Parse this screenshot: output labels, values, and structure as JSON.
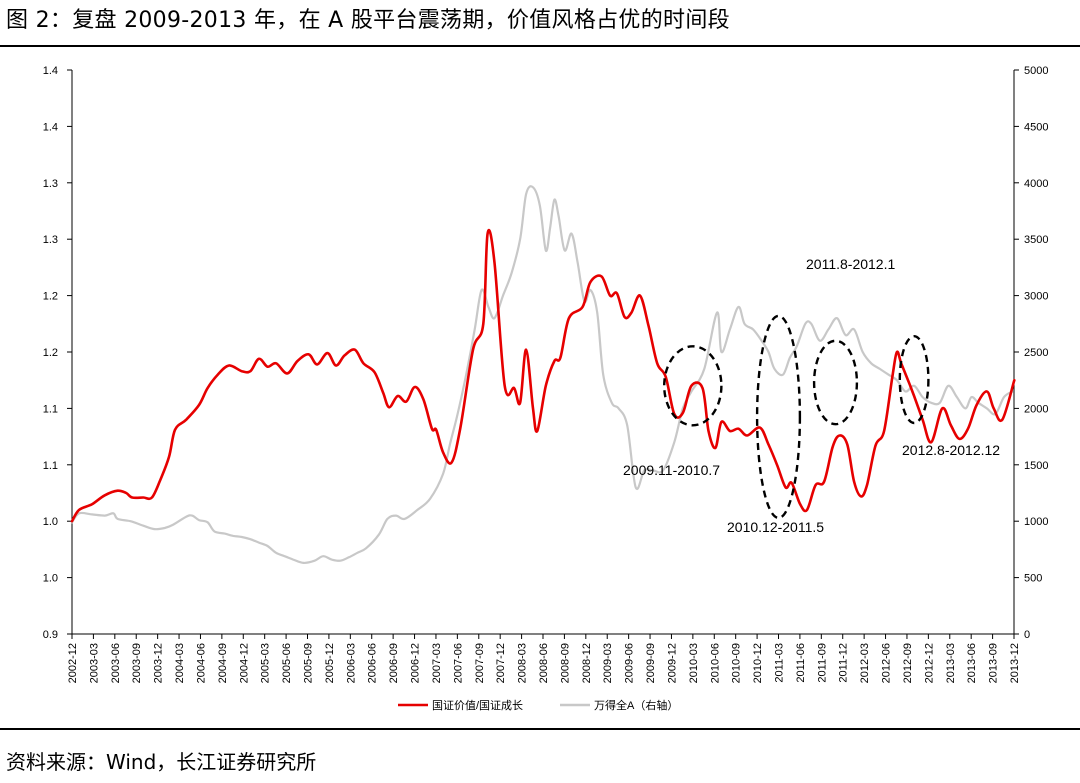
{
  "figure": {
    "title": "图 2：复盘 2009-2013 年，在 A 股平台震荡期，价值风格占优的时间段",
    "source": "资料来源：Wind，长江证券研究所"
  },
  "chart_data": {
    "type": "line",
    "title": "",
    "left_axis": {
      "ticks": [
        "0.9",
        "1.0",
        "1.0",
        "1.1",
        "1.1",
        "1.2",
        "1.2",
        "1.3",
        "1.3",
        "1.4",
        "1.4"
      ],
      "range": [
        0.9,
        1.4
      ]
    },
    "right_axis": {
      "ticks": [
        "0",
        "500",
        "1000",
        "1500",
        "2000",
        "2500",
        "3000",
        "3500",
        "4000",
        "4500",
        "5000"
      ],
      "range": [
        0,
        5000
      ]
    },
    "x_range": [
      2002.917,
      2013.917
    ],
    "x_ticks": [
      "2002-12",
      "2003-03",
      "2003-06",
      "2003-09",
      "2003-12",
      "2004-03",
      "2004-06",
      "2004-09",
      "2004-12",
      "2005-03",
      "2005-06",
      "2005-09",
      "2005-12",
      "2006-03",
      "2006-06",
      "2006-09",
      "2006-12",
      "2007-03",
      "2007-06",
      "2007-09",
      "2007-12",
      "2008-03",
      "2008-06",
      "2008-09",
      "2008-12",
      "2009-03",
      "2009-06",
      "2009-09",
      "2009-12",
      "2010-03",
      "2010-06",
      "2010-09",
      "2010-12",
      "2011-03",
      "2011-06",
      "2011-09",
      "2011-12",
      "2012-03",
      "2012-06",
      "2012-09",
      "2012-12",
      "2013-03",
      "2013-06",
      "2013-09",
      "2013-12"
    ],
    "grid": false,
    "legend_position": "bottom",
    "series": [
      {
        "name": "国证价值/国证成长",
        "axis": "left",
        "color": "#e60000",
        "points": [
          [
            2002.917,
            1.0
          ],
          [
            2003.0,
            1.01
          ],
          [
            2003.15,
            1.015
          ],
          [
            2003.3,
            1.023
          ],
          [
            2003.45,
            1.027
          ],
          [
            2003.55,
            1.025
          ],
          [
            2003.62,
            1.021
          ],
          [
            2003.75,
            1.021
          ],
          [
            2003.85,
            1.021
          ],
          [
            2003.95,
            1.037
          ],
          [
            2004.05,
            1.057
          ],
          [
            2004.12,
            1.081
          ],
          [
            2004.25,
            1.09
          ],
          [
            2004.4,
            1.103
          ],
          [
            2004.5,
            1.118
          ],
          [
            2004.62,
            1.13
          ],
          [
            2004.75,
            1.138
          ],
          [
            2004.9,
            1.133
          ],
          [
            2005.0,
            1.133
          ],
          [
            2005.1,
            1.144
          ],
          [
            2005.2,
            1.137
          ],
          [
            2005.3,
            1.14
          ],
          [
            2005.43,
            1.131
          ],
          [
            2005.55,
            1.142
          ],
          [
            2005.68,
            1.148
          ],
          [
            2005.78,
            1.139
          ],
          [
            2005.9,
            1.149
          ],
          [
            2006.0,
            1.138
          ],
          [
            2006.1,
            1.147
          ],
          [
            2006.22,
            1.152
          ],
          [
            2006.32,
            1.14
          ],
          [
            2006.45,
            1.132
          ],
          [
            2006.55,
            1.114
          ],
          [
            2006.62,
            1.101
          ],
          [
            2006.72,
            1.111
          ],
          [
            2006.82,
            1.106
          ],
          [
            2006.92,
            1.119
          ],
          [
            2007.02,
            1.108
          ],
          [
            2007.12,
            1.082
          ],
          [
            2007.17,
            1.081
          ],
          [
            2007.25,
            1.061
          ],
          [
            2007.35,
            1.052
          ],
          [
            2007.45,
            1.082
          ],
          [
            2007.6,
            1.152
          ],
          [
            2007.72,
            1.175
          ],
          [
            2007.77,
            1.255
          ],
          [
            2007.85,
            1.23
          ],
          [
            2007.97,
            1.12
          ],
          [
            2008.08,
            1.118
          ],
          [
            2008.15,
            1.105
          ],
          [
            2008.22,
            1.152
          ],
          [
            2008.3,
            1.1
          ],
          [
            2008.35,
            1.08
          ],
          [
            2008.45,
            1.12
          ],
          [
            2008.55,
            1.142
          ],
          [
            2008.62,
            1.145
          ],
          [
            2008.72,
            1.18
          ],
          [
            2008.88,
            1.19
          ],
          [
            2008.97,
            1.212
          ],
          [
            2009.1,
            1.217
          ],
          [
            2009.2,
            1.2
          ],
          [
            2009.28,
            1.202
          ],
          [
            2009.37,
            1.181
          ],
          [
            2009.45,
            1.185
          ],
          [
            2009.55,
            1.2
          ],
          [
            2009.65,
            1.173
          ],
          [
            2009.75,
            1.14
          ],
          [
            2009.85,
            1.128
          ],
          [
            2009.95,
            1.095
          ],
          [
            2010.05,
            1.096
          ],
          [
            2010.15,
            1.12
          ],
          [
            2010.28,
            1.118
          ],
          [
            2010.35,
            1.08
          ],
          [
            2010.43,
            1.065
          ],
          [
            2010.5,
            1.088
          ],
          [
            2010.6,
            1.08
          ],
          [
            2010.7,
            1.082
          ],
          [
            2010.8,
            1.076
          ],
          [
            2010.95,
            1.083
          ],
          [
            2011.05,
            1.068
          ],
          [
            2011.15,
            1.05
          ],
          [
            2011.25,
            1.03
          ],
          [
            2011.32,
            1.034
          ],
          [
            2011.42,
            1.015
          ],
          [
            2011.5,
            1.01
          ],
          [
            2011.6,
            1.032
          ],
          [
            2011.7,
            1.035
          ],
          [
            2011.8,
            1.066
          ],
          [
            2011.88,
            1.076
          ],
          [
            2011.97,
            1.068
          ],
          [
            2012.05,
            1.035
          ],
          [
            2012.13,
            1.022
          ],
          [
            2012.2,
            1.032
          ],
          [
            2012.3,
            1.067
          ],
          [
            2012.4,
            1.08
          ],
          [
            2012.5,
            1.13
          ],
          [
            2012.55,
            1.15
          ],
          [
            2012.6,
            1.14
          ],
          [
            2012.7,
            1.121
          ],
          [
            2012.75,
            1.111
          ],
          [
            2012.85,
            1.09
          ],
          [
            2012.95,
            1.07
          ],
          [
            2013.08,
            1.1
          ],
          [
            2013.18,
            1.085
          ],
          [
            2013.28,
            1.073
          ],
          [
            2013.38,
            1.082
          ],
          [
            2013.48,
            1.103
          ],
          [
            2013.6,
            1.115
          ],
          [
            2013.68,
            1.1
          ],
          [
            2013.78,
            1.09
          ],
          [
            2013.92,
            1.125
          ]
        ]
      },
      {
        "name": "万得全A（右轴）",
        "axis": "right",
        "color": "#c8c8c8",
        "points": [
          [
            2002.917,
            990
          ],
          [
            2003.0,
            1070
          ],
          [
            2003.15,
            1060
          ],
          [
            2003.3,
            1050
          ],
          [
            2003.4,
            1070
          ],
          [
            2003.45,
            1020
          ],
          [
            2003.6,
            1000
          ],
          [
            2003.75,
            960
          ],
          [
            2003.88,
            930
          ],
          [
            2004.0,
            940
          ],
          [
            2004.1,
            970
          ],
          [
            2004.25,
            1040
          ],
          [
            2004.32,
            1050
          ],
          [
            2004.4,
            1010
          ],
          [
            2004.5,
            990
          ],
          [
            2004.58,
            910
          ],
          [
            2004.7,
            890
          ],
          [
            2004.8,
            870
          ],
          [
            2004.9,
            860
          ],
          [
            2005.0,
            840
          ],
          [
            2005.1,
            810
          ],
          [
            2005.2,
            780
          ],
          [
            2005.3,
            720
          ],
          [
            2005.4,
            690
          ],
          [
            2005.5,
            660
          ],
          [
            2005.62,
            630
          ],
          [
            2005.75,
            650
          ],
          [
            2005.85,
            690
          ],
          [
            2005.95,
            660
          ],
          [
            2006.05,
            650
          ],
          [
            2006.15,
            680
          ],
          [
            2006.25,
            720
          ],
          [
            2006.35,
            760
          ],
          [
            2006.5,
            880
          ],
          [
            2006.6,
            1020
          ],
          [
            2006.7,
            1050
          ],
          [
            2006.8,
            1020
          ],
          [
            2006.95,
            1100
          ],
          [
            2007.1,
            1200
          ],
          [
            2007.25,
            1420
          ],
          [
            2007.33,
            1680
          ],
          [
            2007.42,
            1950
          ],
          [
            2007.52,
            2300
          ],
          [
            2007.62,
            2700
          ],
          [
            2007.7,
            3050
          ],
          [
            2007.78,
            2900
          ],
          [
            2007.85,
            2800
          ],
          [
            2007.95,
            3000
          ],
          [
            2008.05,
            3200
          ],
          [
            2008.15,
            3500
          ],
          [
            2008.22,
            3900
          ],
          [
            2008.3,
            3960
          ],
          [
            2008.38,
            3800
          ],
          [
            2008.45,
            3400
          ],
          [
            2008.5,
            3600
          ],
          [
            2008.55,
            3850
          ],
          [
            2008.6,
            3700
          ],
          [
            2008.67,
            3400
          ],
          [
            2008.75,
            3550
          ],
          [
            2008.82,
            3300
          ],
          [
            2008.9,
            2950
          ],
          [
            2008.97,
            3050
          ],
          [
            2009.05,
            2850
          ],
          [
            2009.12,
            2300
          ],
          [
            2009.22,
            2050
          ],
          [
            2009.3,
            2000
          ],
          [
            2009.4,
            1850
          ],
          [
            2009.5,
            1300
          ],
          [
            2009.6,
            1450
          ],
          [
            2009.7,
            1450
          ],
          [
            2009.82,
            1450
          ],
          [
            2009.95,
            1700
          ],
          [
            2010.05,
            2000
          ],
          [
            2010.15,
            2150
          ],
          [
            2010.3,
            2350
          ],
          [
            2010.45,
            2850
          ],
          [
            2010.5,
            2500
          ],
          [
            2010.6,
            2700
          ],
          [
            2010.7,
            2900
          ],
          [
            2010.77,
            2750
          ],
          [
            2010.87,
            2700
          ],
          [
            2010.97,
            2600
          ],
          [
            2011.05,
            2500
          ],
          [
            2011.12,
            2350
          ],
          [
            2011.22,
            2300
          ],
          [
            2011.3,
            2450
          ],
          [
            2011.38,
            2550
          ],
          [
            2011.48,
            2750
          ],
          [
            2011.55,
            2750
          ],
          [
            2011.65,
            2600
          ],
          [
            2011.75,
            2700
          ],
          [
            2011.85,
            2800
          ],
          [
            2011.95,
            2650
          ],
          [
            2012.05,
            2700
          ],
          [
            2012.15,
            2500
          ],
          [
            2012.25,
            2400
          ],
          [
            2012.35,
            2350
          ],
          [
            2012.45,
            2300
          ],
          [
            2012.55,
            2250
          ],
          [
            2012.65,
            2150
          ],
          [
            2012.75,
            2200
          ],
          [
            2012.85,
            2100
          ],
          [
            2012.95,
            2050
          ],
          [
            2013.05,
            2050
          ],
          [
            2013.15,
            2200
          ],
          [
            2013.25,
            2100
          ],
          [
            2013.35,
            2000
          ],
          [
            2013.42,
            2100
          ],
          [
            2013.5,
            2050
          ],
          [
            2013.6,
            2000
          ],
          [
            2013.7,
            1950
          ],
          [
            2013.8,
            2100
          ],
          [
            2013.9,
            2150
          ]
        ]
      }
    ],
    "annotations": [
      {
        "label": "2009.11-2010.7",
        "start": 2009.833,
        "end": 2010.5,
        "left_low": 1.085,
        "left_high": 1.155
      },
      {
        "label": "2010.12-2011.5",
        "start": 2010.917,
        "end": 2011.417,
        "left_low": 1.003,
        "left_high": 1.182
      },
      {
        "label": "2011.8-2012.1",
        "start": 2011.583,
        "end": 2012.083,
        "left_low": 1.086,
        "left_high": 1.16
      },
      {
        "label": "2012.8-2012.12",
        "start": 2012.583,
        "end": 2012.917,
        "left_low": 1.087,
        "left_high": 1.164
      }
    ]
  }
}
